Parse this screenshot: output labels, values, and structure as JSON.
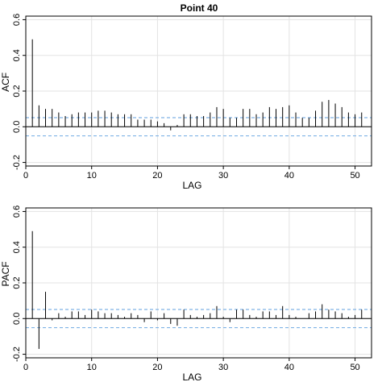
{
  "chart_data": [
    {
      "type": "bar",
      "title": "Point  40",
      "xlabel": "LAG",
      "ylabel": "ACF",
      "xlim": [
        0,
        52.5
      ],
      "ylim": [
        -0.22,
        0.62
      ],
      "xticks": [
        0,
        10,
        20,
        30,
        40,
        50
      ],
      "yticks": [
        -0.2,
        0.0,
        0.2,
        0.4,
        0.6
      ],
      "ytick_labels": [
        "-0.2",
        "0.0",
        "0.2",
        "0.4",
        "0.6"
      ],
      "grid": true,
      "confidence_band": [
        0.051,
        -0.051
      ],
      "lags": [
        1,
        2,
        3,
        4,
        5,
        6,
        7,
        8,
        9,
        10,
        11,
        12,
        13,
        14,
        15,
        16,
        17,
        18,
        19,
        20,
        21,
        22,
        23,
        24,
        25,
        26,
        27,
        28,
        29,
        30,
        31,
        32,
        33,
        34,
        35,
        36,
        37,
        38,
        39,
        40,
        41,
        42,
        43,
        44,
        45,
        46,
        47,
        48,
        49,
        50,
        51
      ],
      "values": [
        0.49,
        0.12,
        0.1,
        0.1,
        0.08,
        0.06,
        0.07,
        0.08,
        0.08,
        0.08,
        0.09,
        0.09,
        0.08,
        0.07,
        0.07,
        0.07,
        0.04,
        0.04,
        0.04,
        0.03,
        0.02,
        -0.02,
        0.01,
        0.07,
        0.07,
        0.06,
        0.06,
        0.08,
        0.11,
        0.1,
        0.05,
        0.05,
        0.1,
        0.1,
        0.07,
        0.08,
        0.11,
        0.1,
        0.11,
        0.12,
        0.08,
        0.05,
        0.05,
        0.09,
        0.14,
        0.15,
        0.13,
        0.11,
        0.08,
        0.07,
        0.08
      ]
    },
    {
      "type": "bar",
      "xlabel": "LAG",
      "ylabel": "PACF",
      "xlim": [
        0,
        52.5
      ],
      "ylim": [
        -0.22,
        0.62
      ],
      "xticks": [
        0,
        10,
        20,
        30,
        40,
        50
      ],
      "yticks": [
        -0.2,
        0.0,
        0.2,
        0.4,
        0.6
      ],
      "ytick_labels": [
        "-0.2",
        "0.0",
        "0.2",
        "0.4",
        "0.6"
      ],
      "grid": true,
      "confidence_band": [
        0.051,
        -0.051
      ],
      "lags": [
        1,
        2,
        3,
        4,
        5,
        6,
        7,
        8,
        9,
        10,
        11,
        12,
        13,
        14,
        15,
        16,
        17,
        18,
        19,
        20,
        21,
        22,
        23,
        24,
        25,
        26,
        27,
        28,
        29,
        30,
        31,
        32,
        33,
        34,
        35,
        36,
        37,
        38,
        39,
        40,
        41,
        42,
        43,
        44,
        45,
        46,
        47,
        48,
        49,
        50,
        51
      ],
      "values": [
        0.49,
        -0.17,
        0.15,
        -0.01,
        0.03,
        0.01,
        0.04,
        0.04,
        0.02,
        0.05,
        0.04,
        0.03,
        0.03,
        0.02,
        0.01,
        0.03,
        0.02,
        -0.02,
        0.04,
        -0.01,
        0.03,
        -0.03,
        -0.04,
        0.05,
        0.02,
        0.01,
        0.02,
        0.03,
        0.07,
        0.01,
        -0.02,
        0.05,
        0.05,
        0.02,
        0.01,
        0.04,
        0.04,
        0.02,
        0.07,
        0.02,
        0.01,
        0.0,
        0.03,
        0.04,
        0.08,
        0.05,
        0.04,
        0.03,
        0.01,
        0.02,
        0.05
      ]
    }
  ]
}
